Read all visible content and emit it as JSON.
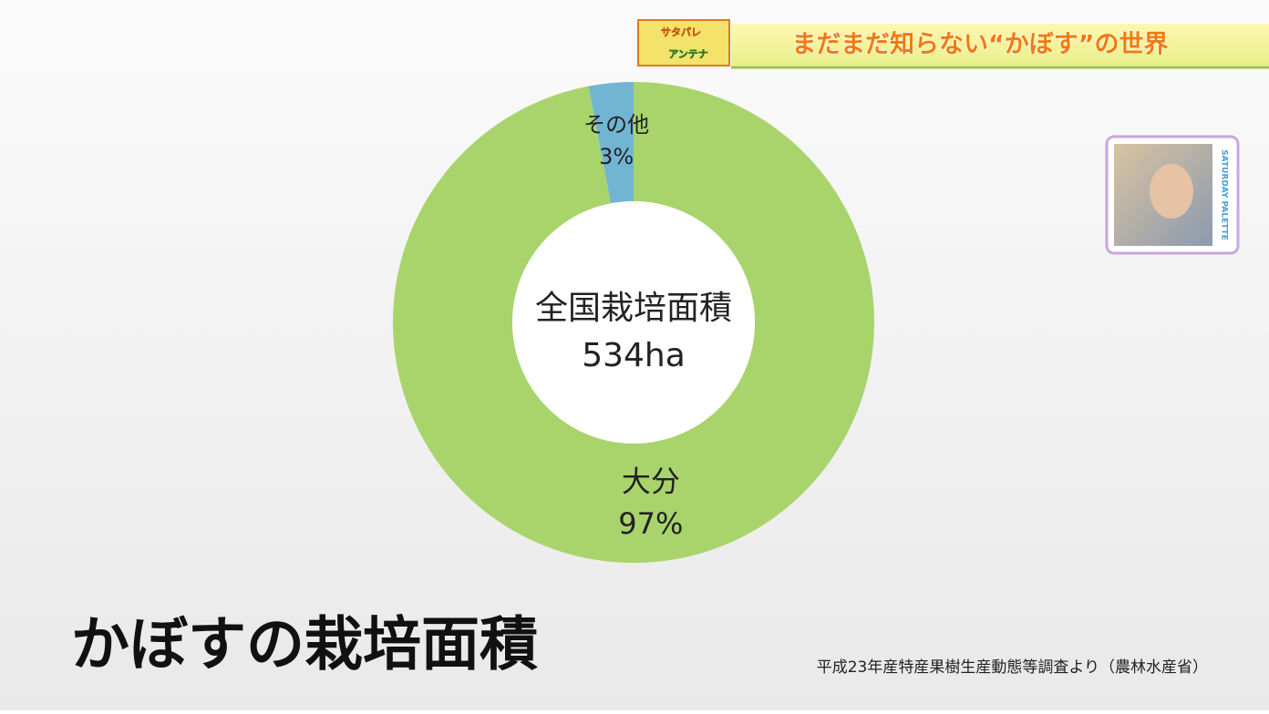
{
  "banner": {
    "logo_top": "サタパレ",
    "logo_bottom": "アンテナ",
    "title": "まだまだ知らない“かぼす”の世界"
  },
  "thumbnail": {
    "label": "SATURDAY PALETTE"
  },
  "chart_data": {
    "type": "donut",
    "categories": [
      "大分",
      "その他"
    ],
    "values": [
      97,
      3
    ],
    "value_labels": [
      "97%",
      "3%"
    ],
    "colors": [
      "#a9d46c",
      "#72b5d2"
    ],
    "center_title": "全国栽培面積",
    "center_value": "534ha"
  },
  "caption": "かぼすの栽培面積",
  "source": "平成23年産特産果樹生産動態等調査より（農林水産省）"
}
